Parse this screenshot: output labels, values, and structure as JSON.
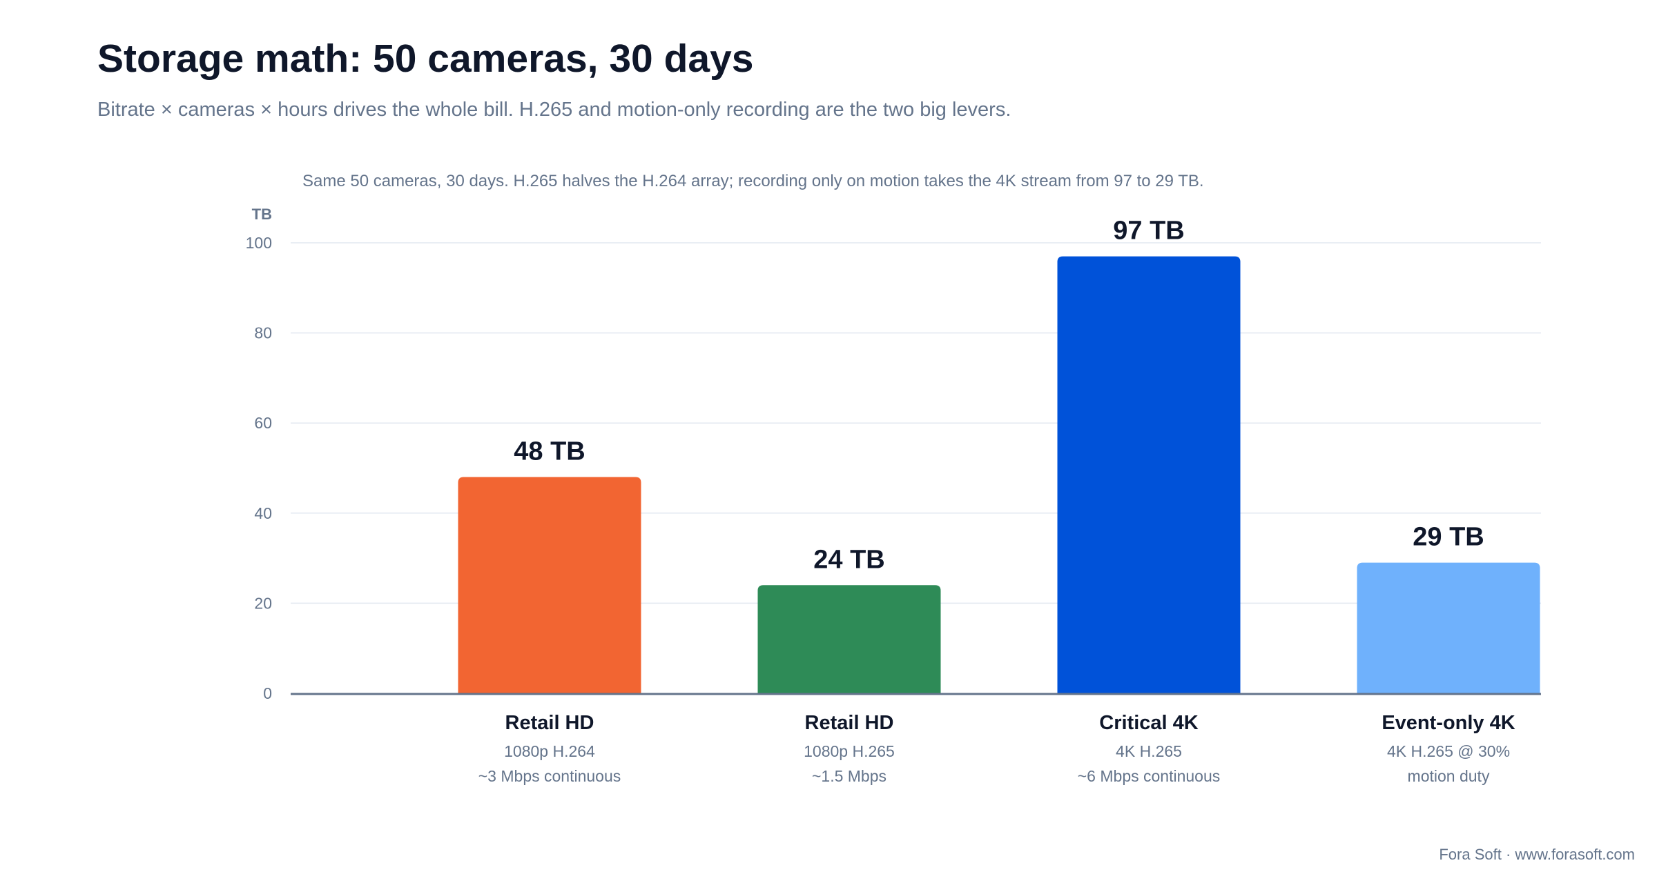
{
  "header": {
    "title": "Storage math: 50 cameras, 30 days",
    "subtitle": "Bitrate × cameras × hours drives the whole bill. H.265 and motion-only recording are the two big levers."
  },
  "footer": {
    "credit": "Fora Soft · www.forasoft.com"
  },
  "chart_data": {
    "type": "bar",
    "annotation": "Same 50 cameras, 30 days. H.265 halves the H.264 array; recording only on motion takes the 4K stream from 97 to 29 TB.",
    "ylabel": "TB",
    "ylim": [
      0,
      100
    ],
    "yticks": [
      0,
      20,
      40,
      60,
      80,
      100
    ],
    "grid": true,
    "categories": [
      "Retail HD",
      "Retail HD",
      "Critical 4K",
      "Event-only 4K"
    ],
    "descriptions": [
      [
        "1080p H.264",
        "~3 Mbps continuous"
      ],
      [
        "1080p H.265",
        "~1.5 Mbps"
      ],
      [
        "4K H.265",
        "~6 Mbps continuous"
      ],
      [
        "4K H.265 @ 30%",
        "motion duty"
      ]
    ],
    "values": [
      48,
      24,
      97,
      29
    ],
    "value_labels": [
      "48 TB",
      "24 TB",
      "97 TB",
      "29 TB"
    ],
    "colors": [
      "#f26532",
      "#2e8b57",
      "#0052d9",
      "#6fb1fc"
    ]
  }
}
